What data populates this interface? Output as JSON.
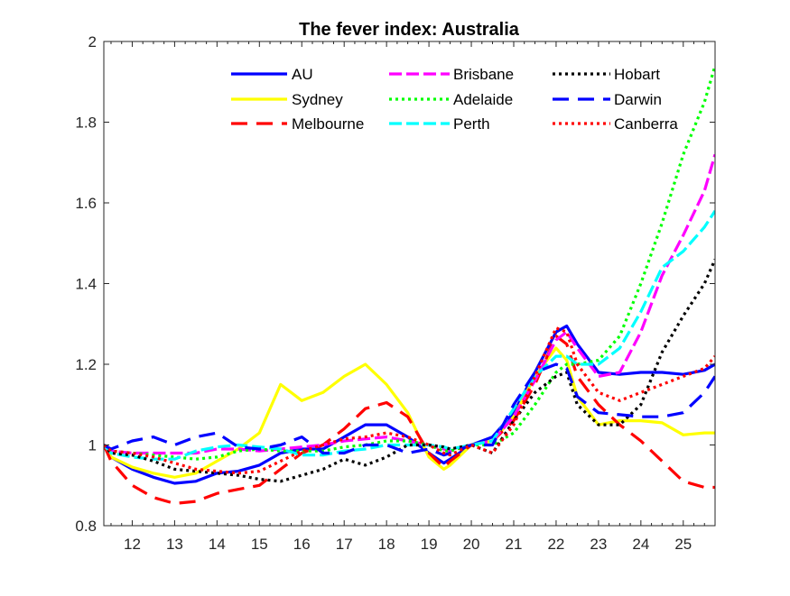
{
  "chart_data": {
    "type": "line",
    "title": "The fever index: Australia",
    "xlabel": "",
    "ylabel": "",
    "xlim": [
      11.33,
      25.75
    ],
    "ylim": [
      0.8,
      2.0
    ],
    "xticks": [
      12,
      13,
      14,
      15,
      16,
      17,
      18,
      19,
      20,
      21,
      22,
      23,
      24,
      25
    ],
    "yticks": [
      0.8,
      1,
      1.2,
      1.4,
      1.6,
      1.8,
      2
    ],
    "ytick_labels": [
      "0.8",
      "1",
      "1.2",
      "1.4",
      "1.6",
      "1.8",
      "2"
    ],
    "grid": false,
    "legend_placement": "top",
    "x": [
      11.33,
      11.5,
      12,
      12.5,
      13,
      13.5,
      14,
      14.5,
      15,
      15.5,
      16,
      16.5,
      17,
      17.5,
      18,
      18.5,
      19,
      19.35,
      19.5,
      20,
      20.5,
      21,
      21.5,
      22,
      22.25,
      22.5,
      23,
      23.5,
      24,
      24.5,
      25,
      25.5,
      25.75
    ],
    "series": [
      {
        "name": "AU",
        "color": "#0000ff",
        "style": "solid",
        "values": [
          1.0,
          0.97,
          0.94,
          0.92,
          0.905,
          0.91,
          0.93,
          0.935,
          0.95,
          0.98,
          0.99,
          0.99,
          1.02,
          1.05,
          1.05,
          1.02,
          0.98,
          0.955,
          0.965,
          1.0,
          1.02,
          1.08,
          1.18,
          1.28,
          1.295,
          1.25,
          1.18,
          1.175,
          1.18,
          1.18,
          1.175,
          1.185,
          1.2
        ]
      },
      {
        "name": "Sydney",
        "color": "#ffff00",
        "style": "solid",
        "values": [
          1.0,
          0.97,
          0.945,
          0.93,
          0.92,
          0.93,
          0.96,
          0.99,
          1.03,
          1.15,
          1.11,
          1.13,
          1.17,
          1.2,
          1.15,
          1.08,
          0.97,
          0.94,
          0.95,
          1.0,
          1.01,
          1.07,
          1.17,
          1.24,
          1.21,
          1.12,
          1.05,
          1.06,
          1.06,
          1.055,
          1.025,
          1.03,
          1.03
        ]
      },
      {
        "name": "Melbourne",
        "color": "#ff0000",
        "style": "dashed",
        "values": [
          1.0,
          0.96,
          0.9,
          0.87,
          0.855,
          0.86,
          0.88,
          0.89,
          0.9,
          0.94,
          0.98,
          1.0,
          1.04,
          1.09,
          1.105,
          1.07,
          0.98,
          0.945,
          0.96,
          1.0,
          1.01,
          1.06,
          1.15,
          1.27,
          1.25,
          1.17,
          1.1,
          1.05,
          1.01,
          0.96,
          0.91,
          0.895,
          0.895
        ]
      },
      {
        "name": "Brisbane",
        "color": "#ff00ff",
        "style": "dashdot",
        "values": [
          1.0,
          0.985,
          0.98,
          0.98,
          0.98,
          0.98,
          0.99,
          0.99,
          0.985,
          0.99,
          0.995,
          1.0,
          1.01,
          1.015,
          1.02,
          1.01,
          1.0,
          0.99,
          0.985,
          1.0,
          1.01,
          1.07,
          1.16,
          1.26,
          1.28,
          1.24,
          1.17,
          1.18,
          1.28,
          1.42,
          1.52,
          1.63,
          1.72
        ]
      },
      {
        "name": "Adelaide",
        "color": "#00ff00",
        "style": "dotted",
        "values": [
          1.0,
          0.985,
          0.98,
          0.975,
          0.97,
          0.965,
          0.97,
          0.985,
          0.99,
          0.985,
          0.985,
          0.985,
          0.995,
          1.0,
          1.01,
          1.01,
          1.0,
          0.985,
          0.985,
          1.0,
          1.0,
          1.03,
          1.1,
          1.18,
          1.2,
          1.2,
          1.21,
          1.27,
          1.4,
          1.55,
          1.72,
          1.85,
          1.94
        ]
      },
      {
        "name": "Perth",
        "color": "#00ffff",
        "style": "dashdot",
        "values": [
          1.0,
          0.98,
          0.97,
          0.965,
          0.965,
          0.985,
          0.995,
          1.0,
          0.995,
          0.99,
          0.975,
          0.975,
          0.985,
          0.99,
          1.0,
          1.0,
          1.0,
          0.995,
          0.99,
          1.0,
          1.01,
          1.09,
          1.17,
          1.22,
          1.22,
          1.2,
          1.2,
          1.24,
          1.33,
          1.44,
          1.48,
          1.54,
          1.58
        ]
      },
      {
        "name": "Hobart",
        "color": "#000000",
        "style": "dotted",
        "values": [
          1.0,
          0.98,
          0.975,
          0.96,
          0.94,
          0.935,
          0.93,
          0.925,
          0.915,
          0.91,
          0.925,
          0.94,
          0.965,
          0.95,
          0.97,
          1.0,
          1.0,
          0.995,
          0.99,
          1.0,
          0.98,
          1.06,
          1.13,
          1.17,
          1.18,
          1.1,
          1.05,
          1.05,
          1.1,
          1.23,
          1.32,
          1.4,
          1.46
        ]
      },
      {
        "name": "Darwin",
        "color": "#0000ff",
        "style": "dashed",
        "values": [
          1.0,
          0.99,
          1.01,
          1.02,
          1.0,
          1.02,
          1.03,
          0.995,
          0.99,
          1.0,
          1.02,
          0.98,
          0.98,
          1.0,
          1.0,
          0.98,
          0.99,
          0.975,
          0.98,
          1.0,
          1.0,
          1.1,
          1.18,
          1.2,
          1.19,
          1.12,
          1.08,
          1.075,
          1.07,
          1.07,
          1.08,
          1.13,
          1.17
        ]
      },
      {
        "name": "Canberra",
        "color": "#ff0000",
        "style": "dotted",
        "values": [
          1.0,
          0.985,
          0.98,
          0.97,
          0.955,
          0.94,
          0.935,
          0.93,
          0.935,
          0.96,
          0.985,
          1.0,
          1.015,
          1.02,
          1.03,
          1.02,
          1.0,
          0.98,
          0.975,
          1.0,
          0.98,
          1.05,
          1.17,
          1.29,
          1.28,
          1.2,
          1.13,
          1.11,
          1.13,
          1.15,
          1.17,
          1.19,
          1.22
        ]
      }
    ]
  }
}
